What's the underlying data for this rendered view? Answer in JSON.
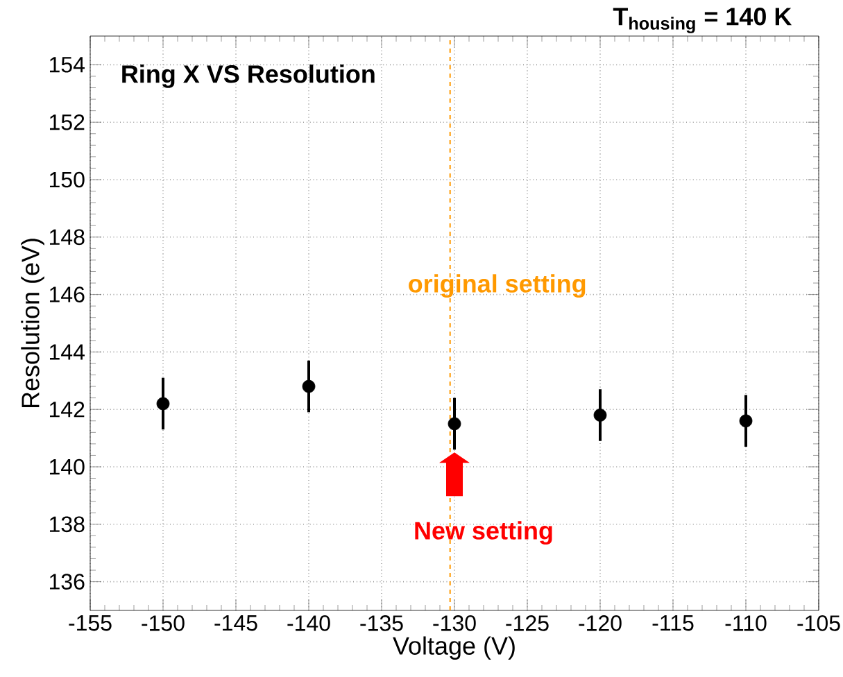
{
  "chart_data": {
    "type": "scatter",
    "title": "Ring X VS Resolution",
    "xlabel": "Voltage (V)",
    "ylabel": "Resolution (eV)",
    "x": [
      -150,
      -140,
      -130,
      -120,
      -110
    ],
    "values": [
      142.2,
      142.8,
      141.5,
      141.8,
      141.6
    ],
    "errors": [
      0.9,
      0.9,
      0.9,
      0.9,
      0.9
    ],
    "color": "#000000",
    "marker": "circle",
    "xlim": [
      -155,
      -105
    ],
    "ylim": [
      135,
      155
    ],
    "xticks": [
      -155,
      -150,
      -145,
      -140,
      -135,
      -130,
      -125,
      -120,
      -115,
      -110,
      -105
    ],
    "yticks": [
      136,
      138,
      140,
      142,
      144,
      146,
      148,
      150,
      152,
      154
    ],
    "grid": true,
    "ref_lines": [
      {
        "axis": "x",
        "value": -130.3,
        "label": "original setting",
        "color": "#ff9900",
        "line_style": "dashed"
      }
    ],
    "annotations": [
      "**T$_{housing}$ = 140 K**",
      {
        "text": "**New setting**",
        "x": -130,
        "y": 140.5
      }
    ]
  }
}
